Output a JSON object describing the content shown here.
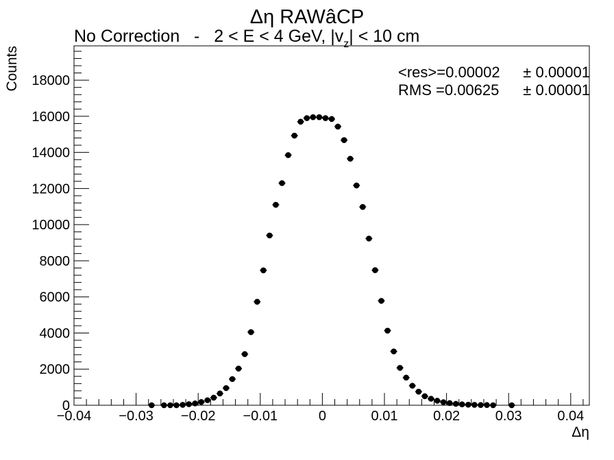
{
  "chart_data": {
    "type": "scatter",
    "title": "Δη RAWâCP",
    "subtitle_parts": {
      "prefix": "No Correction   -   2 < E < 4 GeV, |v",
      "subscript": "z",
      "suffix": "| < 10 cm"
    },
    "xlabel": "Δη",
    "ylabel": "Counts",
    "xlim": [
      -0.04,
      0.043
    ],
    "ylim": [
      0,
      19900
    ],
    "x_ticks": [
      -0.04,
      -0.03,
      -0.02,
      -0.01,
      0,
      0.01,
      0.02,
      0.03,
      0.04
    ],
    "x_tick_labels": [
      "−0.04",
      "−0.03",
      "−0.02",
      "−0.01",
      "0",
      "0.01",
      "0.02",
      "0.03",
      "0.04"
    ],
    "y_ticks": [
      0,
      2000,
      4000,
      6000,
      8000,
      10000,
      12000,
      14000,
      16000,
      18000
    ],
    "y_tick_labels": [
      "0",
      "2000",
      "4000",
      "6000",
      "8000",
      "10000",
      "12000",
      "14000",
      "16000",
      "18000"
    ],
    "stats": {
      "mean_label": "<res>=0.00002",
      "mean_err": "± 0.00001",
      "rms_label": "RMS =0.00625",
      "rms_err": "± 0.00001"
    },
    "series": [
      {
        "x": [
          -0.0275,
          -0.0255,
          -0.0245,
          -0.0235,
          -0.0225,
          -0.0215,
          -0.0205,
          -0.0195,
          -0.0185,
          -0.0175,
          -0.0165,
          -0.0155,
          -0.0145,
          -0.0135,
          -0.0125,
          -0.0115,
          -0.0105,
          -0.0095,
          -0.0085,
          -0.0075,
          -0.0065,
          -0.0055,
          -0.0045,
          -0.0035,
          -0.0025,
          -0.0015,
          -0.0005,
          0.0005,
          0.0015,
          0.0025,
          0.0035,
          0.0045,
          0.0055,
          0.0065,
          0.0075,
          0.0085,
          0.0095,
          0.0105,
          0.0115,
          0.0125,
          0.0135,
          0.0145,
          0.0155,
          0.0165,
          0.0175,
          0.0185,
          0.0195,
          0.0205,
          0.0215,
          0.0225,
          0.0235,
          0.0245,
          0.0255,
          0.0265,
          0.0275,
          0.0305
        ],
        "y": [
          0,
          0,
          0,
          0,
          20,
          60,
          100,
          180,
          280,
          420,
          650,
          950,
          1450,
          2030,
          2830,
          4050,
          5730,
          7470,
          9400,
          11100,
          12300,
          13850,
          14930,
          15700,
          15900,
          15950,
          15950,
          15900,
          15850,
          15430,
          14680,
          13650,
          12170,
          10980,
          9230,
          7480,
          5780,
          4130,
          2980,
          2070,
          1530,
          1080,
          750,
          500,
          360,
          250,
          170,
          120,
          80,
          50,
          30,
          20,
          10,
          10,
          0,
          0
        ]
      }
    ]
  }
}
